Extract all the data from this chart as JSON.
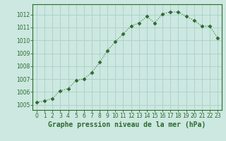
{
  "x": [
    0,
    1,
    2,
    3,
    4,
    5,
    6,
    7,
    8,
    9,
    10,
    11,
    12,
    13,
    14,
    15,
    16,
    17,
    18,
    19,
    20,
    21,
    22,
    23
  ],
  "y": [
    1005.2,
    1005.3,
    1005.5,
    1006.1,
    1006.25,
    1006.9,
    1007.0,
    1007.5,
    1008.3,
    1009.2,
    1009.9,
    1010.5,
    1011.1,
    1011.35,
    1011.85,
    1011.35,
    1012.05,
    1012.2,
    1012.2,
    1011.85,
    1011.55,
    1011.1,
    1011.1,
    1010.2
  ],
  "line_color": "#2d6a2d",
  "marker_color": "#2d6a2d",
  "bg_color": "#cce8e0",
  "grid_color": "#aacfc8",
  "xlabel": "Graphe pression niveau de la mer (hPa)",
  "ylim": [
    1004.6,
    1012.8
  ],
  "xlim": [
    -0.5,
    23.5
  ],
  "yticks": [
    1005,
    1006,
    1007,
    1008,
    1009,
    1010,
    1011,
    1012
  ],
  "xticks": [
    0,
    1,
    2,
    3,
    4,
    5,
    6,
    7,
    8,
    9,
    10,
    11,
    12,
    13,
    14,
    15,
    16,
    17,
    18,
    19,
    20,
    21,
    22,
    23
  ],
  "tick_fontsize": 5.5,
  "xlabel_fontsize": 7.0,
  "line_width": 0.8,
  "marker_size": 2.5
}
